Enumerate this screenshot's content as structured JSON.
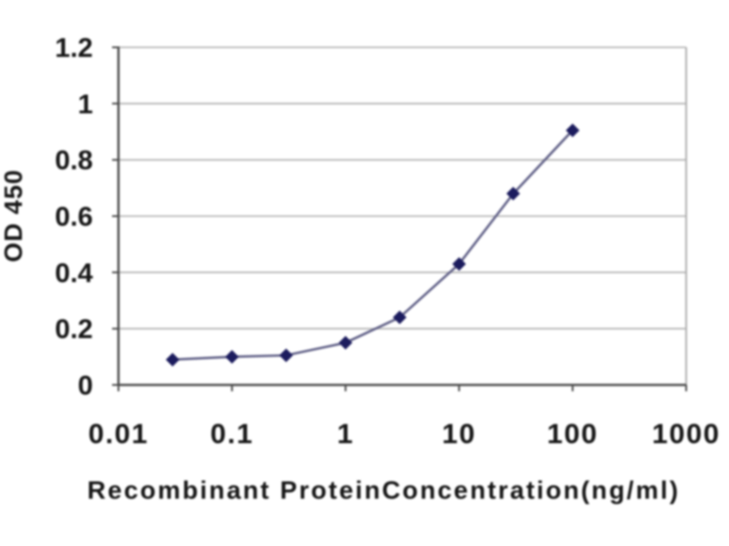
{
  "colors": {
    "line": "#5f5f86",
    "marker": "#1c1c5e",
    "grid": "#b8b8b8",
    "axis": "#4a4a4a",
    "border": "#a8a8a8",
    "text": "#161616",
    "background": "#ffffff"
  },
  "chart_data": {
    "type": "line",
    "title": "",
    "xlabel": "Recombinant ProteinConcentration(ng/ml)",
    "ylabel": "OD 450",
    "x_scale": "log",
    "xlim": [
      0.01,
      1000
    ],
    "x_ticks": [
      0.01,
      0.1,
      1,
      10,
      100,
      1000
    ],
    "x_tick_labels": [
      "0.01",
      "0.1",
      "1",
      "10",
      "100",
      "1000"
    ],
    "ylim": [
      0,
      1.2
    ],
    "y_ticks": [
      0,
      0.2,
      0.4,
      0.6,
      0.8,
      1,
      1.2
    ],
    "y_tick_labels": [
      "0",
      "0.2",
      "0.4",
      "0.6",
      "0.8",
      "1",
      "1.2"
    ],
    "grid": true,
    "legend": false,
    "marker": "diamond",
    "series": [
      {
        "name": "OD 450",
        "x": [
          0.03,
          0.1,
          0.3,
          1,
          3,
          10,
          30,
          100
        ],
        "y": [
          0.09,
          0.1,
          0.105,
          0.15,
          0.24,
          0.43,
          0.68,
          0.905
        ]
      }
    ]
  }
}
